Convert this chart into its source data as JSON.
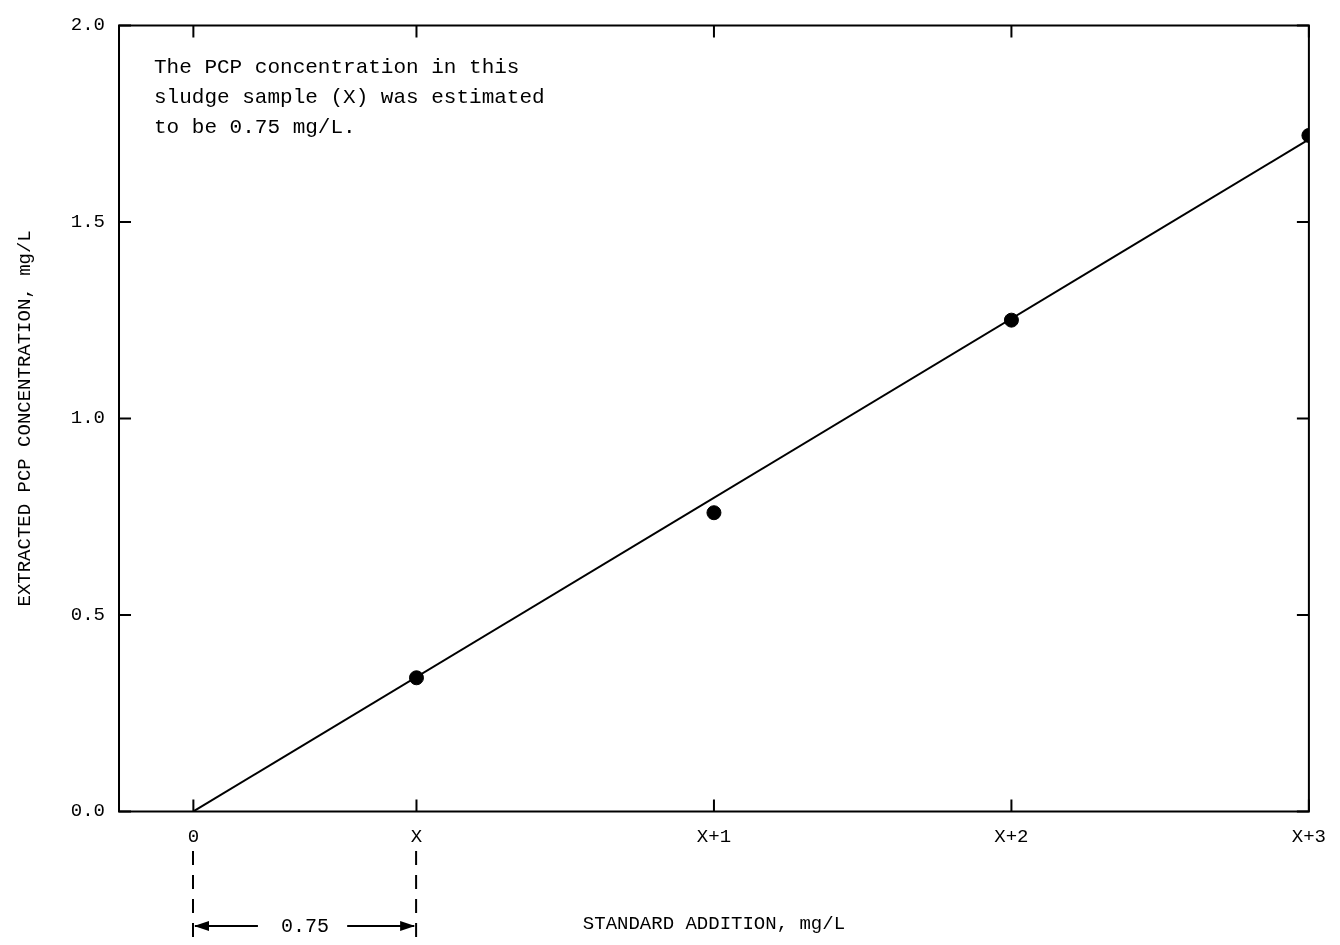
{
  "chart_data": {
    "type": "scatter",
    "xlabel": "STANDARD ADDITION, mg/L",
    "ylabel": "EXTRACTED PCP CONCENTRATION, mg/L",
    "categories": [
      null,
      "0",
      null,
      null,
      "X",
      null,
      null,
      null,
      "X+1",
      null,
      null,
      null,
      "X+2",
      null,
      null,
      null,
      "X+3"
    ],
    "ylim": [
      0,
      2
    ],
    "yticks": [
      {
        "value": 0,
        "label": "0.0"
      },
      0.5,
      {
        "value": 1,
        "label": "1.0"
      },
      1.5,
      {
        "value": 2,
        "label": "2.0"
      }
    ],
    "grid": false,
    "legend": false,
    "marker": "circle",
    "series": [
      {
        "color": "#000000",
        "x": [
          "X",
          "X+1",
          "X+2",
          "X+3"
        ],
        "values": [
          0.34,
          0.76,
          1.25,
          1.72
        ]
      },
      {
        "type": "line",
        "color": "#000000",
        "x": [
          "0",
          "X+3"
        ],
        "values": [
          0,
          1.71
        ],
        "marker": "none",
        "line_style": "solid"
      }
    ],
    "annotations": [
      "The PCP concentration in this\nsludge sample (X) was estimated\nto be 0.75 mg/L.",
      "0.75"
    ]
  }
}
